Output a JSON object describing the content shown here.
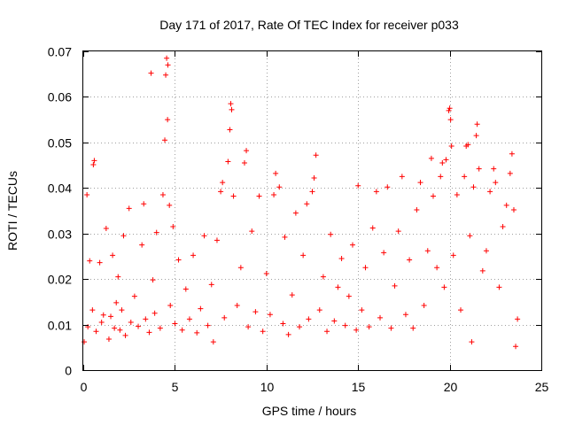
{
  "chart_data": {
    "type": "scatter",
    "title": "Day 171 of 2017, Rate Of TEC Index for receiver p033",
    "xlabel": "GPS time / hours",
    "ylabel": "ROTI / TECUs",
    "xlim": [
      0,
      25
    ],
    "ylim": [
      0,
      0.07
    ],
    "xticks": [
      0,
      5,
      10,
      15,
      20,
      25
    ],
    "xtick_labels": [
      "0",
      "5",
      "10",
      "15",
      "20",
      "25"
    ],
    "yticks": [
      0,
      0.01,
      0.02,
      0.03,
      0.04,
      0.05,
      0.06,
      0.07
    ],
    "ytick_labels": [
      "0",
      "0.01",
      "0.02",
      "0.03",
      "0.04",
      "0.05",
      "0.06",
      "0.07"
    ],
    "grid": true,
    "marker": "+",
    "color": "#ff0000",
    "series": [
      {
        "points": [
          [
            0.05,
            0.0062
          ],
          [
            0.2,
            0.0385
          ],
          [
            0.25,
            0.0095
          ],
          [
            0.35,
            0.024
          ],
          [
            0.5,
            0.0132
          ],
          [
            0.55,
            0.0451
          ],
          [
            0.6,
            0.046
          ],
          [
            0.7,
            0.0085
          ],
          [
            0.9,
            0.0236
          ],
          [
            1.0,
            0.0105
          ],
          [
            1.1,
            0.0121
          ],
          [
            1.25,
            0.0311
          ],
          [
            1.4,
            0.0068
          ],
          [
            1.5,
            0.0118
          ],
          [
            1.6,
            0.0252
          ],
          [
            1.7,
            0.0092
          ],
          [
            1.8,
            0.0148
          ],
          [
            1.9,
            0.0205
          ],
          [
            2.0,
            0.0088
          ],
          [
            2.1,
            0.0132
          ],
          [
            2.2,
            0.0295
          ],
          [
            2.3,
            0.0076
          ],
          [
            2.5,
            0.0355
          ],
          [
            2.6,
            0.0105
          ],
          [
            2.8,
            0.0162
          ],
          [
            3.0,
            0.0096
          ],
          [
            3.2,
            0.0275
          ],
          [
            3.3,
            0.0365
          ],
          [
            3.4,
            0.0112
          ],
          [
            3.6,
            0.0083
          ],
          [
            3.7,
            0.0652
          ],
          [
            3.8,
            0.0198
          ],
          [
            3.9,
            0.0125
          ],
          [
            4.0,
            0.0302
          ],
          [
            4.2,
            0.0092
          ],
          [
            4.35,
            0.0385
          ],
          [
            4.45,
            0.0505
          ],
          [
            4.5,
            0.0648
          ],
          [
            4.55,
            0.0685
          ],
          [
            4.6,
            0.055
          ],
          [
            4.62,
            0.067
          ],
          [
            4.7,
            0.0362
          ],
          [
            4.75,
            0.0142
          ],
          [
            4.9,
            0.0315
          ],
          [
            5.0,
            0.0102
          ],
          [
            5.2,
            0.0242
          ],
          [
            5.4,
            0.0088
          ],
          [
            5.6,
            0.0178
          ],
          [
            5.8,
            0.0112
          ],
          [
            6.0,
            0.0252
          ],
          [
            6.2,
            0.0082
          ],
          [
            6.4,
            0.0135
          ],
          [
            6.6,
            0.0295
          ],
          [
            6.8,
            0.0098
          ],
          [
            7.0,
            0.0188
          ],
          [
            7.1,
            0.0062
          ],
          [
            7.3,
            0.0285
          ],
          [
            7.5,
            0.0392
          ],
          [
            7.6,
            0.0412
          ],
          [
            7.7,
            0.0115
          ],
          [
            7.9,
            0.0458
          ],
          [
            8.0,
            0.0528
          ],
          [
            8.05,
            0.0585
          ],
          [
            8.1,
            0.0572
          ],
          [
            8.2,
            0.0382
          ],
          [
            8.4,
            0.0142
          ],
          [
            8.6,
            0.0225
          ],
          [
            8.8,
            0.0455
          ],
          [
            8.9,
            0.0482
          ],
          [
            9.0,
            0.0095
          ],
          [
            9.2,
            0.0305
          ],
          [
            9.4,
            0.0128
          ],
          [
            9.6,
            0.0382
          ],
          [
            9.8,
            0.0085
          ],
          [
            10.0,
            0.0212
          ],
          [
            10.2,
            0.0122
          ],
          [
            10.4,
            0.0385
          ],
          [
            10.5,
            0.0432
          ],
          [
            10.7,
            0.0402
          ],
          [
            10.9,
            0.0102
          ],
          [
            11.0,
            0.0292
          ],
          [
            11.2,
            0.0078
          ],
          [
            11.4,
            0.0165
          ],
          [
            11.6,
            0.0345
          ],
          [
            11.8,
            0.0095
          ],
          [
            12.0,
            0.0252
          ],
          [
            12.2,
            0.0365
          ],
          [
            12.3,
            0.0112
          ],
          [
            12.5,
            0.0392
          ],
          [
            12.6,
            0.0422
          ],
          [
            12.7,
            0.0472
          ],
          [
            12.9,
            0.0132
          ],
          [
            13.1,
            0.0205
          ],
          [
            13.3,
            0.0085
          ],
          [
            13.5,
            0.0298
          ],
          [
            13.7,
            0.0108
          ],
          [
            13.9,
            0.0182
          ],
          [
            14.1,
            0.0245
          ],
          [
            14.3,
            0.0098
          ],
          [
            14.5,
            0.0162
          ],
          [
            14.7,
            0.0275
          ],
          [
            14.9,
            0.0088
          ],
          [
            15.0,
            0.0405
          ],
          [
            15.2,
            0.0132
          ],
          [
            15.4,
            0.0225
          ],
          [
            15.6,
            0.0095
          ],
          [
            15.8,
            0.0312
          ],
          [
            16.0,
            0.0392
          ],
          [
            16.2,
            0.0115
          ],
          [
            16.4,
            0.0258
          ],
          [
            16.6,
            0.0402
          ],
          [
            16.8,
            0.0092
          ],
          [
            17.0,
            0.0185
          ],
          [
            17.2,
            0.0305
          ],
          [
            17.4,
            0.0425
          ],
          [
            17.6,
            0.0122
          ],
          [
            17.8,
            0.0242
          ],
          [
            18.0,
            0.0092
          ],
          [
            18.2,
            0.0352
          ],
          [
            18.4,
            0.0412
          ],
          [
            18.6,
            0.0142
          ],
          [
            18.8,
            0.0262
          ],
          [
            19.0,
            0.0465
          ],
          [
            19.1,
            0.0382
          ],
          [
            19.3,
            0.0225
          ],
          [
            19.5,
            0.0425
          ],
          [
            19.6,
            0.0455
          ],
          [
            19.7,
            0.0182
          ],
          [
            19.8,
            0.0462
          ],
          [
            19.95,
            0.057
          ],
          [
            20.0,
            0.0575
          ],
          [
            20.05,
            0.055
          ],
          [
            20.1,
            0.0492
          ],
          [
            20.2,
            0.0252
          ],
          [
            20.4,
            0.0385
          ],
          [
            20.6,
            0.0132
          ],
          [
            20.8,
            0.0425
          ],
          [
            20.9,
            0.0492
          ],
          [
            21.0,
            0.0495
          ],
          [
            21.1,
            0.0295
          ],
          [
            21.2,
            0.0062
          ],
          [
            21.3,
            0.0402
          ],
          [
            21.45,
            0.0515
          ],
          [
            21.5,
            0.054
          ],
          [
            21.6,
            0.0442
          ],
          [
            21.8,
            0.0218
          ],
          [
            22.0,
            0.0262
          ],
          [
            22.2,
            0.0392
          ],
          [
            22.4,
            0.0442
          ],
          [
            22.5,
            0.0412
          ],
          [
            22.7,
            0.0182
          ],
          [
            22.9,
            0.0315
          ],
          [
            23.1,
            0.0362
          ],
          [
            23.3,
            0.0432
          ],
          [
            23.4,
            0.0475
          ],
          [
            23.5,
            0.0352
          ],
          [
            23.6,
            0.0052
          ],
          [
            23.7,
            0.0112
          ]
        ]
      }
    ]
  }
}
